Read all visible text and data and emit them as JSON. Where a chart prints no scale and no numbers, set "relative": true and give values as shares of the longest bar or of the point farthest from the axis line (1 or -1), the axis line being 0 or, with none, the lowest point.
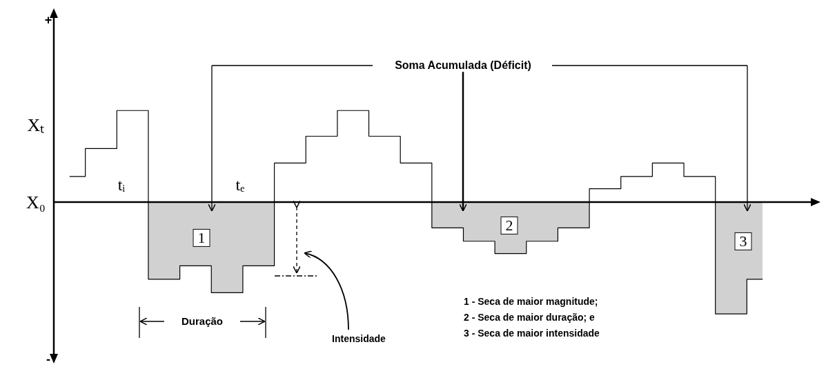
{
  "chart_data": {
    "type": "step",
    "relative": true,
    "categories": [
      null,
      null,
      null,
      null,
      null,
      null,
      null,
      null,
      null,
      null,
      null,
      null,
      null,
      null,
      null,
      null,
      null,
      null,
      null,
      null,
      null,
      null,
      null
    ],
    "values": [
      0.23,
      0.48,
      0.82,
      -0.69,
      -0.57,
      -0.81,
      -0.57,
      0.35,
      0.59,
      0.82,
      0.59,
      0.35,
      -0.23,
      -0.35,
      -0.46,
      -0.35,
      -0.23,
      0.12,
      0.23,
      0.35,
      0.23,
      -1,
      -0.69
    ],
    "color": "#000000",
    "legend": false,
    "annotations": [
      "+",
      "-",
      "Xₜ",
      "X₀",
      "tᵢ",
      "tₑ",
      "Soma Acumulada (Déficit)",
      "1",
      "2",
      "3",
      "Duração",
      "Intensidade",
      "1 - Seca de maior magnitude;",
      "2 - Seca de maior duração; e",
      "3 - Seca de maior intensidade"
    ]
  }
}
